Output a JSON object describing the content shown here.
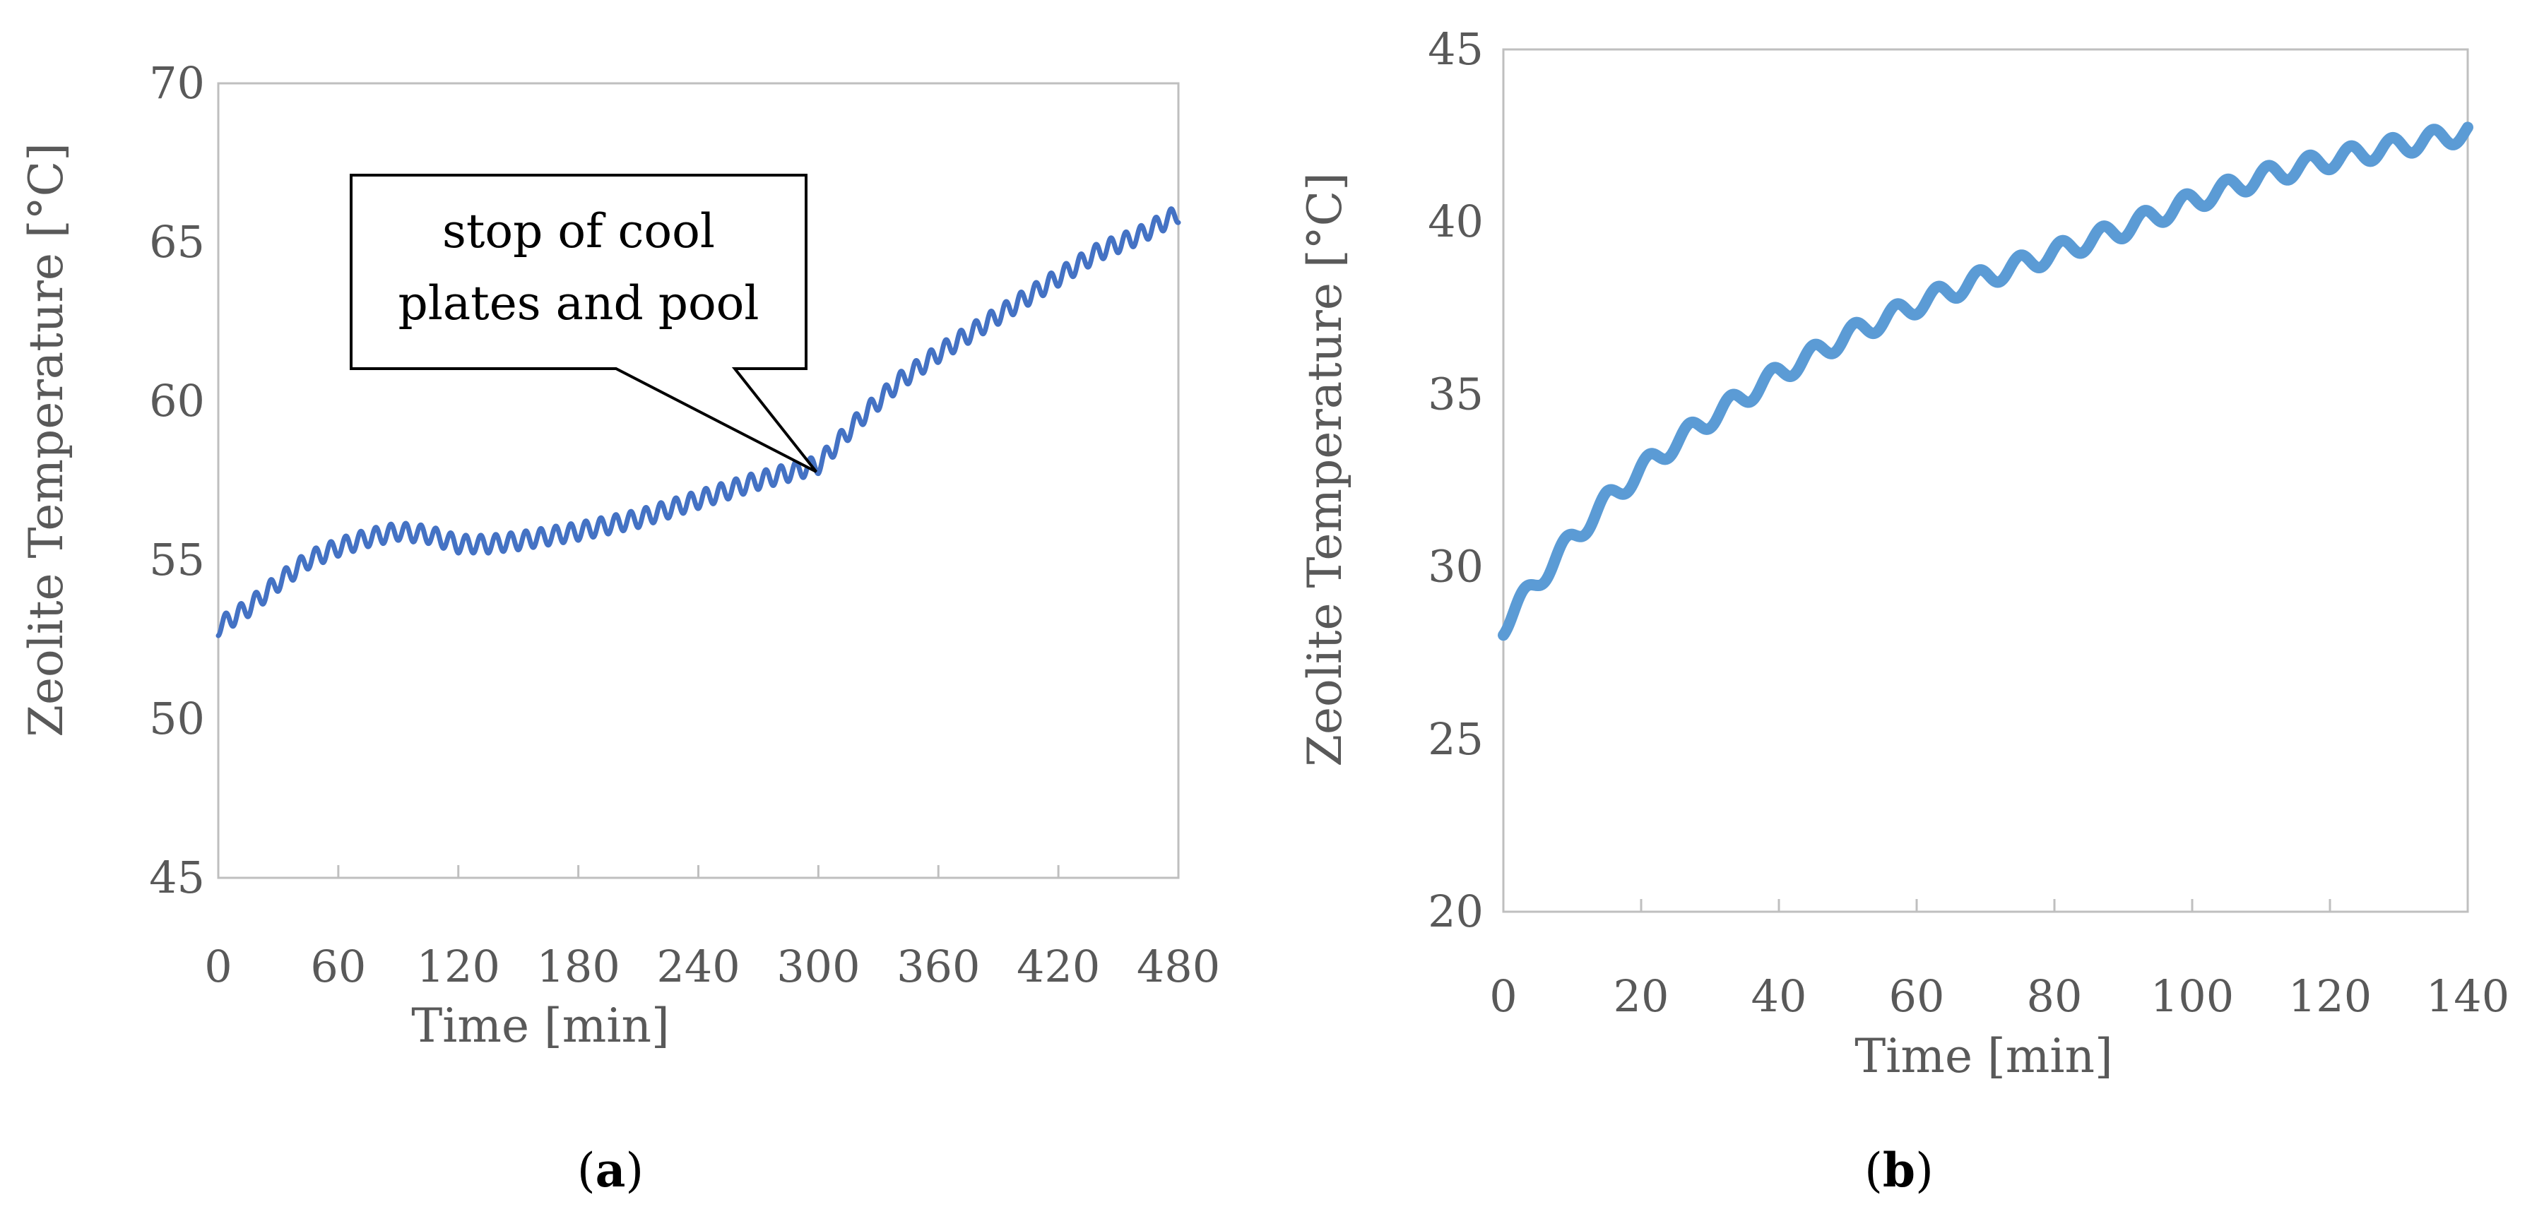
{
  "chart_data": [
    {
      "type": "line",
      "panel_label": "a",
      "xlabel": "Time [min]",
      "ylabel": "Zeolite Temperature [°C]",
      "xlim": [
        0,
        480
      ],
      "ylim": [
        45,
        70
      ],
      "xticks": [
        0,
        60,
        120,
        180,
        240,
        300,
        360,
        420,
        480
      ],
      "yticks": [
        45,
        50,
        55,
        60,
        65,
        70
      ],
      "grid": false,
      "line_color": "#4472c4",
      "oscillation_period_min": 7.5,
      "oscillation_amplitude": 0.28,
      "series": [
        {
          "name": "Zeolite Temperature",
          "x": [
            0,
            15,
            30,
            45,
            60,
            75,
            90,
            105,
            120,
            135,
            150,
            180,
            210,
            240,
            270,
            300,
            320,
            340,
            360,
            380,
            400,
            420,
            440,
            460,
            480
          ],
          "y": [
            52.9,
            53.5,
            54.3,
            55.0,
            55.4,
            55.7,
            55.9,
            55.8,
            55.5,
            55.5,
            55.6,
            55.9,
            56.3,
            56.9,
            57.5,
            58.0,
            59.4,
            60.6,
            61.5,
            62.3,
            63.1,
            63.9,
            64.7,
            65.2,
            65.9
          ]
        }
      ],
      "annotation": {
        "lines": [
          "stop of cool",
          "plates and pool"
        ],
        "points_to": [
          300,
          58.0
        ]
      }
    },
    {
      "type": "line",
      "panel_label": "b",
      "xlabel": "Time [min]",
      "ylabel": "Zeolite Temperature [°C]",
      "xlim": [
        0,
        140
      ],
      "ylim": [
        20,
        45
      ],
      "xticks": [
        0,
        20,
        40,
        60,
        80,
        100,
        120,
        140
      ],
      "yticks": [
        20,
        25,
        30,
        35,
        40,
        45
      ],
      "grid": false,
      "line_color": "#5b9bd5",
      "oscillation_period_min": 6,
      "oscillation_amplitude": 0.28,
      "series": [
        {
          "name": "Zeolite Temperature",
          "x": [
            0,
            5,
            10,
            15,
            20,
            25,
            30,
            40,
            50,
            60,
            70,
            80,
            90,
            100,
            110,
            120,
            130,
            140
          ],
          "y": [
            28.3,
            29.6,
            30.8,
            31.9,
            32.8,
            33.6,
            34.3,
            35.6,
            36.7,
            37.6,
            38.4,
            39.1,
            39.8,
            40.6,
            41.3,
            41.8,
            42.2,
            42.6
          ]
        }
      ]
    }
  ]
}
